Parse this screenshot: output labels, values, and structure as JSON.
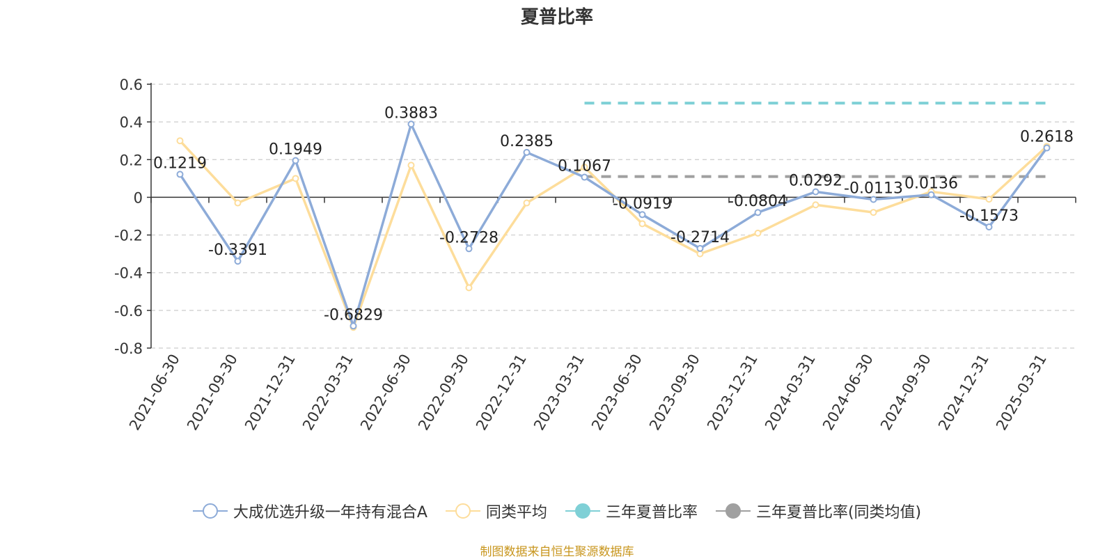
{
  "chart_data": {
    "type": "line",
    "title": "夏普比率",
    "categories": [
      "2021-06-30",
      "2021-09-30",
      "2021-12-31",
      "2022-03-31",
      "2022-06-30",
      "2022-09-30",
      "2022-12-31",
      "2023-03-31",
      "2023-06-30",
      "2023-09-30",
      "2023-12-31",
      "2024-03-31",
      "2024-06-30",
      "2024-09-30",
      "2024-12-31",
      "2025-03-31"
    ],
    "ylim": [
      -0.8,
      0.6
    ],
    "yticks": [
      0.6,
      0.4,
      0.2,
      0,
      -0.2,
      -0.4,
      -0.6,
      -0.8
    ],
    "ytick_labels": [
      "0.6",
      "0.4",
      "0.2",
      "0",
      "-0.2",
      "-0.4",
      "-0.6",
      "-0.8"
    ],
    "grid": true,
    "legend_position": "bottom",
    "series": [
      {
        "name": "大成优选升级一年持有混合A",
        "color": "#8dabd8",
        "values": [
          0.1219,
          -0.3391,
          0.1949,
          -0.6829,
          0.3883,
          -0.2728,
          0.2385,
          0.1067,
          -0.0919,
          -0.2714,
          -0.0804,
          0.0292,
          -0.0113,
          0.0136,
          -0.1573,
          0.2618
        ],
        "labels": [
          "0.1219",
          "-0.3391",
          "0.1949",
          "-0.6829",
          "0.3883",
          "-0.2728",
          "0.2385",
          "0.1067",
          "-0.0919",
          "-0.2714",
          "-0.0804",
          "0.0292",
          "-0.0113",
          "0.0136",
          "-0.1573",
          "0.2618"
        ]
      },
      {
        "name": "同类平均",
        "color": "#fddd9b",
        "values": [
          0.3,
          -0.03,
          0.1,
          -0.69,
          0.17,
          -0.48,
          -0.03,
          0.16,
          -0.14,
          -0.3,
          -0.19,
          -0.04,
          -0.08,
          0.03,
          -0.01,
          0.27
        ]
      }
    ],
    "reference_lines": [
      {
        "name": "三年夏普比率",
        "color": "#7fd0d6",
        "value": 0.5,
        "from": "2023-03-31",
        "to": "2025-03-31"
      },
      {
        "name": "三年夏普比率(同类均值)",
        "color": "#a0a0a0",
        "value": 0.11,
        "from": "2023-03-31",
        "to": "2025-03-31"
      }
    ]
  },
  "source_text": "制图数据来自恒生聚源数据库"
}
